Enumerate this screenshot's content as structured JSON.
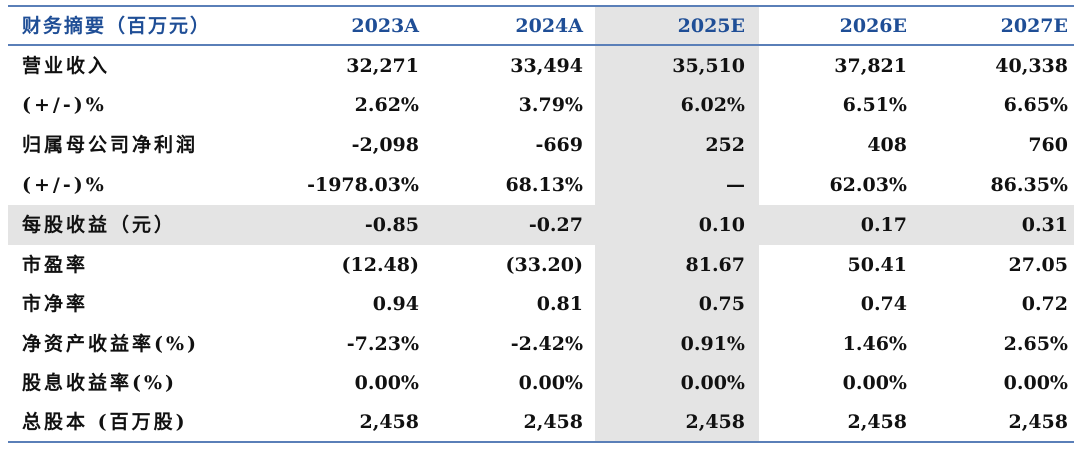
{
  "header": {
    "label": "财务摘要（百万元）",
    "years": [
      "2023A",
      "2024A",
      "2025E",
      "2026E",
      "2027E"
    ]
  },
  "rows": [
    {
      "label": "营业收入",
      "values": [
        "32,271",
        "33,494",
        "35,510",
        "37,821",
        "40,338"
      ]
    },
    {
      "label": "(+/-)%",
      "values": [
        "2.62%",
        "3.79%",
        "6.02%",
        "6.51%",
        "6.65%"
      ]
    },
    {
      "label": "归属母公司净利润",
      "values": [
        "-2,098",
        "-669",
        "252",
        "408",
        "760"
      ]
    },
    {
      "label": "(+/-)%",
      "values": [
        "-1978.03%",
        "68.13%",
        "—",
        "62.03%",
        "86.35%"
      ]
    },
    {
      "label": "每股收益（元）",
      "values": [
        "-0.85",
        "-0.27",
        "0.10",
        "0.17",
        "0.31"
      ]
    },
    {
      "label": "市盈率",
      "values": [
        "(12.48)",
        "(33.20)",
        "81.67",
        "50.41",
        "27.05"
      ]
    },
    {
      "label": "市净率",
      "values": [
        "0.94",
        "0.81",
        "0.75",
        "0.74",
        "0.72"
      ]
    },
    {
      "label": "净资产收益率(%)",
      "values": [
        "-7.23%",
        "-2.42%",
        "0.91%",
        "1.46%",
        "2.65%"
      ]
    },
    {
      "label": "股息收益率(%)",
      "values": [
        "0.00%",
        "0.00%",
        "0.00%",
        "0.00%",
        "0.00%"
      ]
    },
    {
      "label": "总股本 (百万股)",
      "values": [
        "2,458",
        "2,458",
        "2,458",
        "2,458",
        "2,458"
      ]
    }
  ],
  "colors": {
    "header_text": "#1f4e96",
    "rule": "#5a7fb8",
    "shade": "#e4e4e4"
  }
}
